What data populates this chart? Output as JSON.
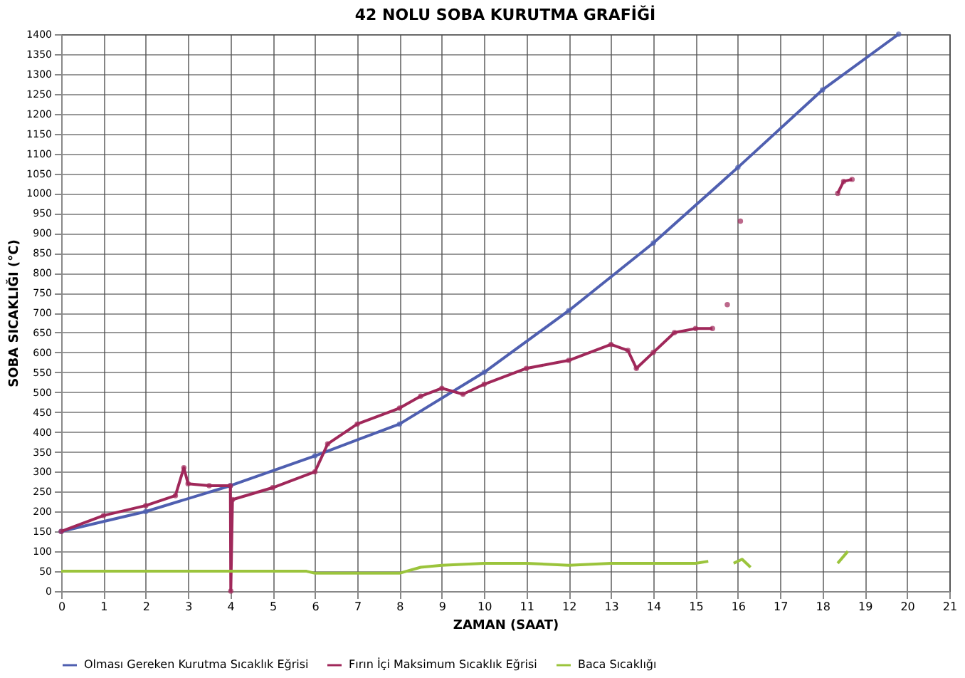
{
  "chart_data": {
    "type": "line",
    "title": "42 NOLU SOBA KURUTMA GRAFİĞİ",
    "xlabel": "ZAMAN (SAAT)",
    "ylabel": "SOBA SICAKLIĞI (°C)",
    "xlim": [
      0,
      21
    ],
    "xticks": [
      0,
      1,
      2,
      3,
      4,
      5,
      6,
      7,
      8,
      9,
      10,
      11,
      12,
      13,
      14,
      15,
      16,
      17,
      18,
      19,
      20,
      21
    ],
    "ylim": [
      0,
      1400
    ],
    "yticks": [
      0,
      50,
      100,
      150,
      200,
      250,
      300,
      350,
      400,
      450,
      500,
      550,
      600,
      650,
      700,
      750,
      800,
      850,
      900,
      950,
      1000,
      1050,
      1100,
      1150,
      1200,
      1250,
      1300,
      1350,
      1400
    ],
    "grid": true,
    "legend": "bottom",
    "line_style": "solid",
    "series": [
      {
        "name": "Olması Gereken Kurutma Sıcaklık Eğrisi",
        "color": "#4f5fb0",
        "marker": "circle",
        "x": [
          0,
          2,
          4,
          6,
          8,
          10,
          12,
          14,
          16,
          18,
          19.8
        ],
        "values": [
          150,
          200,
          265,
          340,
          420,
          550,
          705,
          875,
          1065,
          1260,
          1400
        ]
      },
      {
        "name": "Fırın İçi Maksimum Sıcaklık Eğrisi",
        "color": "#a0285a",
        "marker": "circle",
        "x": [
          0,
          1,
          2,
          2.7,
          2.9,
          3.0,
          3.5,
          4,
          4.01,
          4.05,
          5,
          6,
          6.3,
          7,
          8,
          8.5,
          9,
          9.5,
          10,
          11,
          12,
          13,
          13.4,
          13.6,
          14,
          14.5,
          15,
          15.4,
          15.5,
          15.75,
          15.9,
          16.06,
          16.2,
          18.36,
          18.5,
          18.7
        ],
        "values": [
          150,
          190,
          215,
          240,
          310,
          270,
          265,
          265,
          0,
          230,
          260,
          300,
          370,
          420,
          460,
          490,
          510,
          495,
          520,
          560,
          580,
          620,
          605,
          560,
          600,
          650,
          660,
          660,
          null,
          720,
          null,
          930,
          null,
          1000,
          1030,
          1035
        ]
      },
      {
        "name": "Baca Sıcaklığı",
        "color": "#9bc43c",
        "marker": "none",
        "x": [
          0,
          2,
          4,
          5.8,
          6,
          8,
          8.5,
          9,
          10,
          11,
          12,
          13,
          14,
          15,
          15.3,
          15.5,
          15.9,
          16.1,
          16.3,
          17,
          18.36,
          18.6
        ],
        "values": [
          50,
          50,
          50,
          50,
          45,
          45,
          60,
          65,
          70,
          70,
          65,
          70,
          70,
          70,
          75,
          null,
          70,
          80,
          60,
          null,
          70,
          100
        ]
      }
    ]
  }
}
